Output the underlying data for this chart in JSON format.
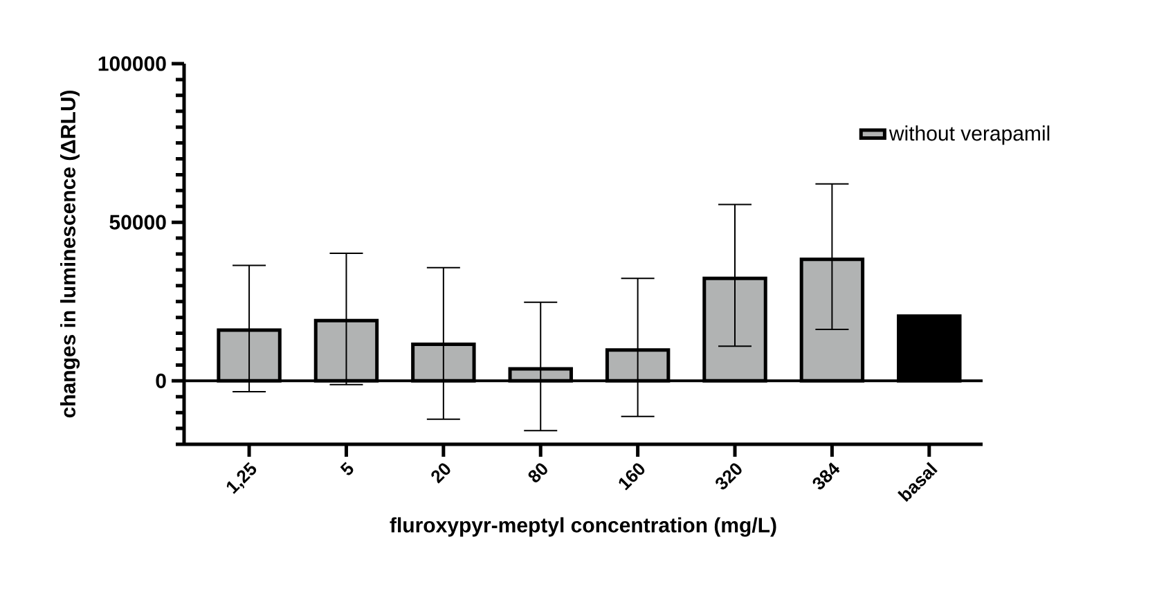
{
  "chart_data": {
    "type": "bar",
    "xlabel": "fluroxypyr-meptyl concentration (mg/L)",
    "ylabel": "changes in luminescence (ΔRLU)",
    "categories": [
      "1,25",
      "5",
      "20",
      "80",
      "160",
      "320",
      "384",
      "basal"
    ],
    "series": [
      {
        "name": "without verapamil",
        "color": "#b1b3b3",
        "colors": [
          "#b1b3b3",
          "#b1b3b3",
          "#b1b3b3",
          "#b1b3b3",
          "#b1b3b3",
          "#b1b3b3",
          "#b1b3b3",
          "#000000"
        ],
        "values": [
          16000,
          19000,
          11500,
          3800,
          9700,
          32300,
          38300,
          20400
        ],
        "errors": [
          [
            -3400,
            36400
          ],
          [
            -1200,
            40200
          ],
          [
            -12100,
            35700
          ],
          [
            -15700,
            24800
          ],
          [
            -11200,
            32300
          ],
          [
            10900,
            55600
          ],
          [
            16200,
            62100
          ],
          null
        ]
      }
    ],
    "ylim": [
      -20000,
      100000
    ],
    "yticks": [
      {
        "value": -20000,
        "label": null
      },
      {
        "value": -15000,
        "label": null
      },
      {
        "value": -10000,
        "label": null
      },
      {
        "value": -5000,
        "label": null
      },
      0,
      {
        "value": 5000,
        "label": null
      },
      {
        "value": 10000,
        "label": null
      },
      {
        "value": 15000,
        "label": null
      },
      {
        "value": 20000,
        "label": null
      },
      {
        "value": 25000,
        "label": null
      },
      {
        "value": 30000,
        "label": null
      },
      {
        "value": 35000,
        "label": null
      },
      {
        "value": 40000,
        "label": null
      },
      {
        "value": 45000,
        "label": null
      },
      50000,
      {
        "value": 55000,
        "label": null
      },
      {
        "value": 60000,
        "label": null
      },
      {
        "value": 65000,
        "label": null
      },
      {
        "value": 70000,
        "label": null
      },
      {
        "value": 75000,
        "label": null
      },
      {
        "value": 80000,
        "label": null
      },
      {
        "value": 85000,
        "label": null
      },
      {
        "value": 90000,
        "label": null
      },
      {
        "value": 95000,
        "label": null
      },
      100000
    ],
    "ref_lines": [
      {
        "axis": "y",
        "value": 0
      }
    ],
    "legend": "top right"
  }
}
